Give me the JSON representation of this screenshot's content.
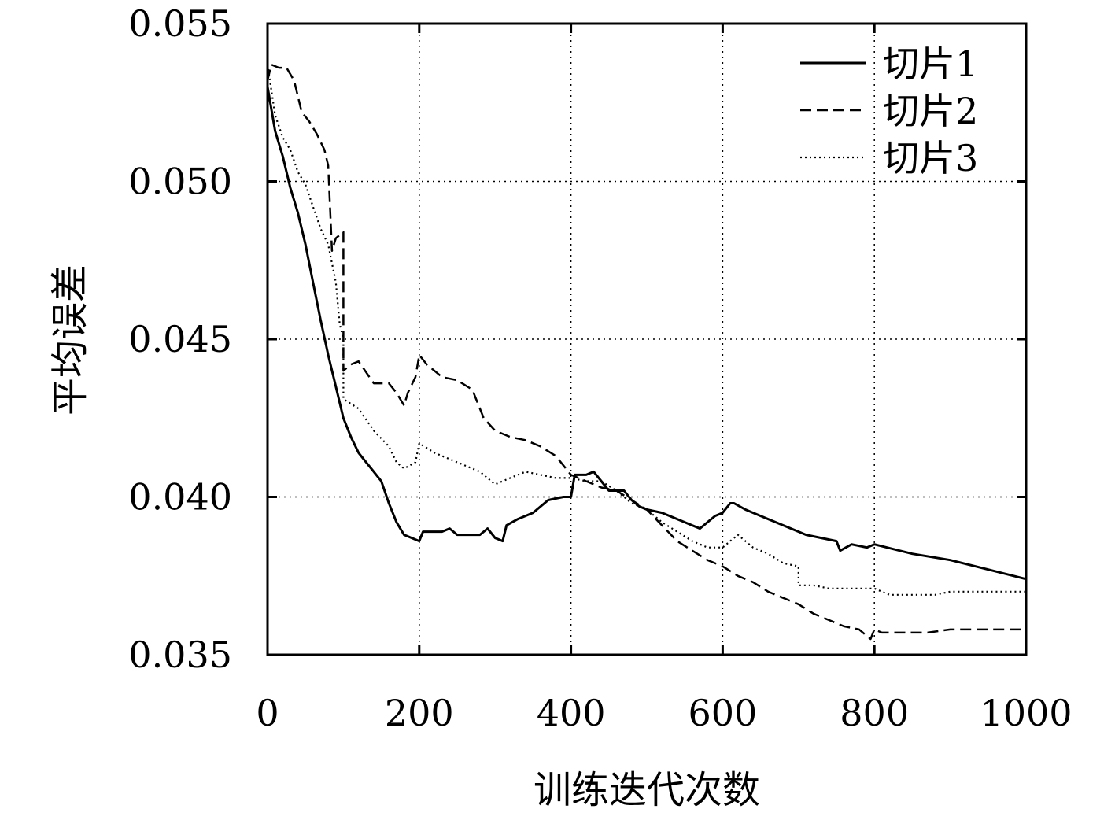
{
  "chart_data": {
    "type": "line",
    "title": "",
    "xlabel": "训练迭代次数",
    "ylabel": "平均误差",
    "xlim": [
      0,
      1000
    ],
    "ylim": [
      0.035,
      0.055
    ],
    "x_ticks": [
      "0",
      "200",
      "400",
      "600",
      "800",
      "1000"
    ],
    "y_ticks": [
      "0.035",
      "0.040",
      "0.045",
      "0.050",
      "0.055"
    ],
    "grid": true,
    "legend_position": "top-right",
    "series": [
      {
        "name": "切片1",
        "style": "solid",
        "color": "#000000",
        "points": [
          [
            0,
            0.053
          ],
          [
            10,
            0.0516
          ],
          [
            20,
            0.0508
          ],
          [
            30,
            0.0498
          ],
          [
            40,
            0.049
          ],
          [
            50,
            0.048
          ],
          [
            60,
            0.0468
          ],
          [
            70,
            0.0456
          ],
          [
            80,
            0.0445
          ],
          [
            90,
            0.0435
          ],
          [
            100,
            0.0425
          ],
          [
            110,
            0.0419
          ],
          [
            120,
            0.0414
          ],
          [
            130,
            0.0411
          ],
          [
            140,
            0.0408
          ],
          [
            150,
            0.0405
          ],
          [
            160,
            0.0398
          ],
          [
            170,
            0.0392
          ],
          [
            180,
            0.0388
          ],
          [
            190,
            0.0387
          ],
          [
            200,
            0.0386
          ],
          [
            205,
            0.0389
          ],
          [
            210,
            0.0389
          ],
          [
            230,
            0.0389
          ],
          [
            240,
            0.039
          ],
          [
            250,
            0.0388
          ],
          [
            260,
            0.0388
          ],
          [
            280,
            0.0388
          ],
          [
            290,
            0.039
          ],
          [
            300,
            0.0387
          ],
          [
            310,
            0.0386
          ],
          [
            315,
            0.0391
          ],
          [
            330,
            0.0393
          ],
          [
            350,
            0.0395
          ],
          [
            370,
            0.0399
          ],
          [
            390,
            0.04
          ],
          [
            400,
            0.04
          ],
          [
            405,
            0.0407
          ],
          [
            420,
            0.0407
          ],
          [
            430,
            0.0408
          ],
          [
            440,
            0.0405
          ],
          [
            450,
            0.0402
          ],
          [
            470,
            0.0402
          ],
          [
            480,
            0.0399
          ],
          [
            490,
            0.0397
          ],
          [
            500,
            0.0396
          ],
          [
            520,
            0.0395
          ],
          [
            540,
            0.0393
          ],
          [
            560,
            0.0391
          ],
          [
            570,
            0.039
          ],
          [
            580,
            0.0392
          ],
          [
            590,
            0.0394
          ],
          [
            600,
            0.0395
          ],
          [
            610,
            0.0398
          ],
          [
            615,
            0.0398
          ],
          [
            630,
            0.0396
          ],
          [
            650,
            0.0394
          ],
          [
            670,
            0.0392
          ],
          [
            690,
            0.039
          ],
          [
            710,
            0.0388
          ],
          [
            730,
            0.0387
          ],
          [
            750,
            0.0386
          ],
          [
            755,
            0.0383
          ],
          [
            770,
            0.0385
          ],
          [
            790,
            0.0384
          ],
          [
            800,
            0.0385
          ],
          [
            850,
            0.0382
          ],
          [
            900,
            0.038
          ],
          [
            950,
            0.0377
          ],
          [
            1000,
            0.0374
          ]
        ]
      },
      {
        "name": "切片2",
        "style": "dashed",
        "color": "#000000",
        "points": [
          [
            0,
            0.0532
          ],
          [
            5,
            0.0537
          ],
          [
            15,
            0.0536
          ],
          [
            25,
            0.0536
          ],
          [
            35,
            0.0532
          ],
          [
            45,
            0.0522
          ],
          [
            55,
            0.0519
          ],
          [
            65,
            0.0515
          ],
          [
            75,
            0.051
          ],
          [
            80,
            0.0505
          ],
          [
            85,
            0.0478
          ],
          [
            90,
            0.0482
          ],
          [
            100,
            0.0484
          ],
          [
            100,
            0.044
          ],
          [
            110,
            0.0442
          ],
          [
            120,
            0.0443
          ],
          [
            140,
            0.0436
          ],
          [
            160,
            0.0436
          ],
          [
            170,
            0.0433
          ],
          [
            180,
            0.0429
          ],
          [
            185,
            0.0433
          ],
          [
            195,
            0.0438
          ],
          [
            200,
            0.0445
          ],
          [
            210,
            0.0442
          ],
          [
            230,
            0.0438
          ],
          [
            250,
            0.0437
          ],
          [
            270,
            0.0434
          ],
          [
            285,
            0.0425
          ],
          [
            300,
            0.0421
          ],
          [
            320,
            0.0419
          ],
          [
            340,
            0.0418
          ],
          [
            360,
            0.0416
          ],
          [
            380,
            0.0413
          ],
          [
            400,
            0.0407
          ],
          [
            420,
            0.0405
          ],
          [
            440,
            0.0403
          ],
          [
            460,
            0.0402
          ],
          [
            480,
            0.0399
          ],
          [
            500,
            0.0396
          ],
          [
            520,
            0.0391
          ],
          [
            540,
            0.0386
          ],
          [
            560,
            0.0383
          ],
          [
            580,
            0.038
          ],
          [
            600,
            0.0378
          ],
          [
            620,
            0.0375
          ],
          [
            640,
            0.0373
          ],
          [
            660,
            0.037
          ],
          [
            680,
            0.0368
          ],
          [
            700,
            0.0366
          ],
          [
            720,
            0.0363
          ],
          [
            740,
            0.0361
          ],
          [
            760,
            0.0359
          ],
          [
            780,
            0.0358
          ],
          [
            795,
            0.0355
          ],
          [
            800,
            0.0358
          ],
          [
            810,
            0.0357
          ],
          [
            830,
            0.0357
          ],
          [
            850,
            0.0357
          ],
          [
            870,
            0.0357
          ],
          [
            900,
            0.0358
          ],
          [
            930,
            0.0358
          ],
          [
            960,
            0.0358
          ],
          [
            1000,
            0.0358
          ]
        ]
      },
      {
        "name": "切片3",
        "style": "dotted",
        "color": "#000000",
        "points": [
          [
            0,
            0.0537
          ],
          [
            10,
            0.0521
          ],
          [
            20,
            0.0514
          ],
          [
            30,
            0.051
          ],
          [
            40,
            0.0503
          ],
          [
            50,
            0.0499
          ],
          [
            60,
            0.0492
          ],
          [
            70,
            0.0485
          ],
          [
            80,
            0.048
          ],
          [
            90,
            0.0468
          ],
          [
            95,
            0.0455
          ],
          [
            100,
            0.045
          ],
          [
            100,
            0.0431
          ],
          [
            120,
            0.0428
          ],
          [
            140,
            0.0421
          ],
          [
            160,
            0.0416
          ],
          [
            170,
            0.0411
          ],
          [
            180,
            0.0409
          ],
          [
            195,
            0.0411
          ],
          [
            200,
            0.0417
          ],
          [
            220,
            0.0414
          ],
          [
            240,
            0.0412
          ],
          [
            260,
            0.041
          ],
          [
            280,
            0.0408
          ],
          [
            300,
            0.0404
          ],
          [
            320,
            0.0406
          ],
          [
            340,
            0.0408
          ],
          [
            360,
            0.0407
          ],
          [
            380,
            0.0406
          ],
          [
            400,
            0.0406
          ],
          [
            420,
            0.0405
          ],
          [
            440,
            0.0405
          ],
          [
            460,
            0.0402
          ],
          [
            480,
            0.0398
          ],
          [
            500,
            0.0396
          ],
          [
            520,
            0.0392
          ],
          [
            540,
            0.0389
          ],
          [
            560,
            0.0386
          ],
          [
            580,
            0.0384
          ],
          [
            600,
            0.0384
          ],
          [
            620,
            0.0388
          ],
          [
            640,
            0.0384
          ],
          [
            660,
            0.0382
          ],
          [
            680,
            0.0379
          ],
          [
            700,
            0.0378
          ],
          [
            700,
            0.0372
          ],
          [
            720,
            0.0372
          ],
          [
            740,
            0.0371
          ],
          [
            760,
            0.0371
          ],
          [
            780,
            0.0371
          ],
          [
            800,
            0.0371
          ],
          [
            820,
            0.0369
          ],
          [
            840,
            0.0369
          ],
          [
            860,
            0.0369
          ],
          [
            880,
            0.0369
          ],
          [
            900,
            0.037
          ],
          [
            930,
            0.037
          ],
          [
            960,
            0.037
          ],
          [
            1000,
            0.037
          ]
        ]
      }
    ]
  }
}
